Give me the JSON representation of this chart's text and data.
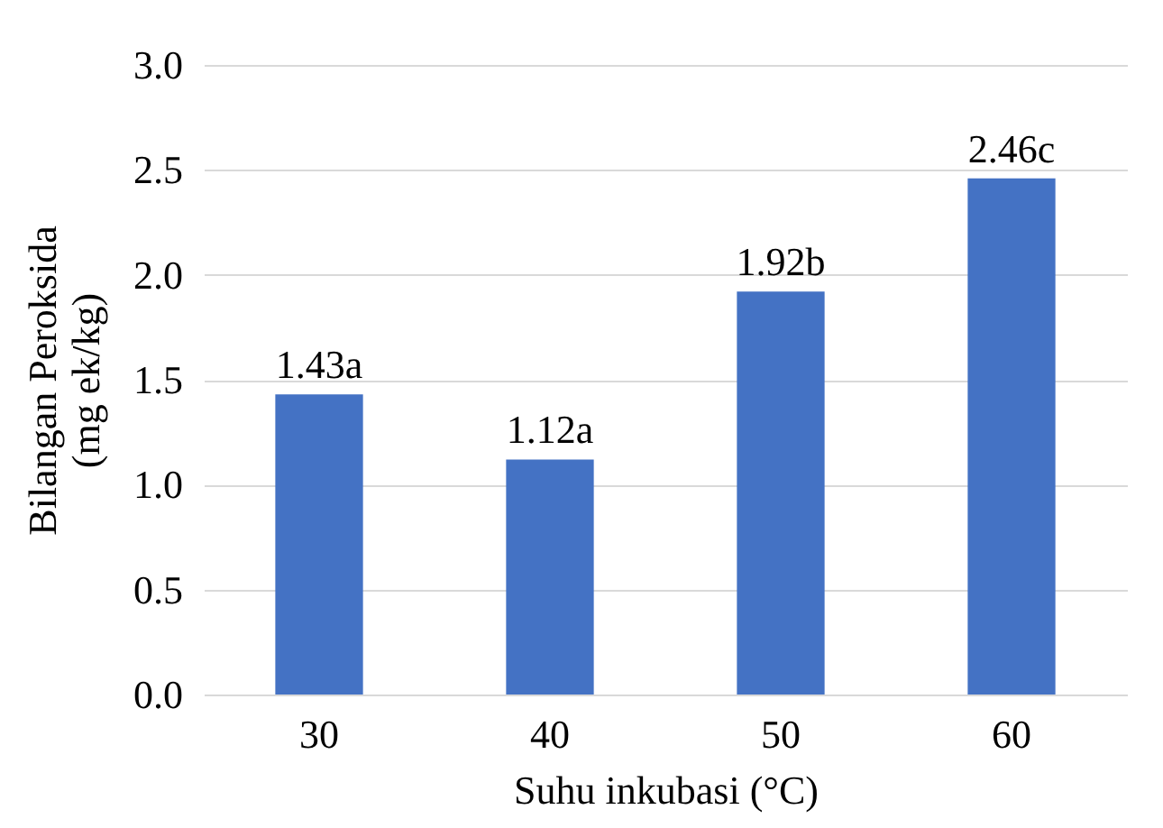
{
  "chart_data": {
    "type": "bar",
    "xlabel": "Suhu inkubasi (°C)",
    "ylabel": "Bilangan Peroksida\n(mg ek/kg)",
    "categories": [
      "30",
      "40",
      "50",
      "60"
    ],
    "values": [
      1.43,
      1.12,
      1.92,
      2.46
    ],
    "color": "#4472c4",
    "value_labels": [
      "1.43a",
      "1.12a",
      "1.92b",
      "2.46c"
    ],
    "ylim": [
      0,
      3
    ],
    "yticks": [
      {
        "value": 0,
        "label": "0.0"
      },
      0.5,
      {
        "value": 1,
        "label": "1.0"
      },
      1.5,
      {
        "value": 2,
        "label": "2.0"
      },
      2.5,
      {
        "value": 3,
        "label": "3.0"
      }
    ],
    "grid": "y"
  }
}
